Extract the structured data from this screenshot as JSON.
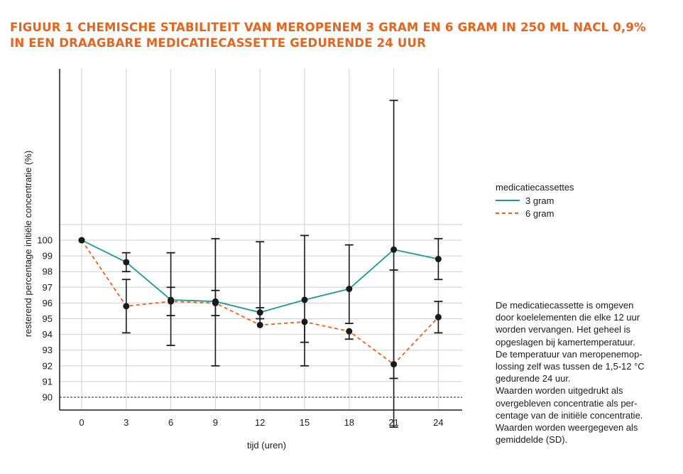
{
  "title": {
    "line1": "FIGUUR 1 CHEMISCHE STABILITEIT VAN MEROPENEM 3 GRAM EN 6 GRAM IN 250 ML NACL 0,9%",
    "line2": "IN EEN DRAAGBARE MEDICATIECASSETTE GEDURENDE 24 UUR"
  },
  "legend": {
    "title": "medicatiecassettes",
    "items": [
      "3 gram",
      "6 gram"
    ]
  },
  "note": {
    "lines": [
      "De medicatiecassette is omgeven",
      "door koelelementen die elke 12 uur",
      "worden vervangen. Het geheel is",
      "opgeslagen bij kamertemperatuur.",
      "De temperatuur van meropenemop-",
      "lossing zelf was tussen de 1,5-12 °C",
      "gedurende 24 uur.",
      "Waarden worden uitgedrukt als",
      "overgebleven concentratie als per-",
      "centage van de initiële concentratie.",
      "Waarden worden weergegeven als",
      "gemiddelde (SD)."
    ]
  },
  "colors": {
    "title": "#e8641b",
    "series_3gram": "#1f9a96",
    "series_6gram": "#e8641b",
    "markers": "#1a1a1a",
    "grid": "#cfcfcf"
  },
  "chart_data": {
    "type": "line",
    "xlabel": "tijd (uren)",
    "ylabel": "resterend percentage initiële concentratie (%)",
    "x": [
      0,
      3,
      6,
      9,
      12,
      15,
      18,
      21,
      24
    ],
    "yticks": [
      90,
      91,
      92,
      93,
      94,
      95,
      96,
      97,
      98,
      99,
      100
    ],
    "reference_line": 90,
    "series": [
      {
        "name": "3 gram",
        "color": "#1f9a96",
        "style": "solid",
        "values": [
          100,
          98.6,
          96.2,
          96.1,
          95.4,
          96.2,
          96.9,
          99.4,
          98.8
        ],
        "err_low": [
          null,
          98.0,
          93.3,
          92.0,
          95.0,
          92.0,
          94.7,
          88.1,
          97.5
        ],
        "err_high": [
          null,
          99.2,
          99.2,
          100.1,
          95.7,
          100.3,
          99.7,
          108.9,
          100.1
        ]
      },
      {
        "name": "6 gram",
        "color": "#e8641b",
        "style": "dashed",
        "values": [
          100,
          95.8,
          96.1,
          96.0,
          94.6,
          94.8,
          94.2,
          92.1,
          95.1
        ],
        "err_low": [
          null,
          94.1,
          95.2,
          95.2,
          null,
          93.5,
          93.7,
          91.2,
          94.1
        ],
        "err_high": [
          null,
          97.5,
          97.0,
          96.8,
          99.9,
          null,
          null,
          98.1,
          96.1
        ]
      }
    ]
  }
}
